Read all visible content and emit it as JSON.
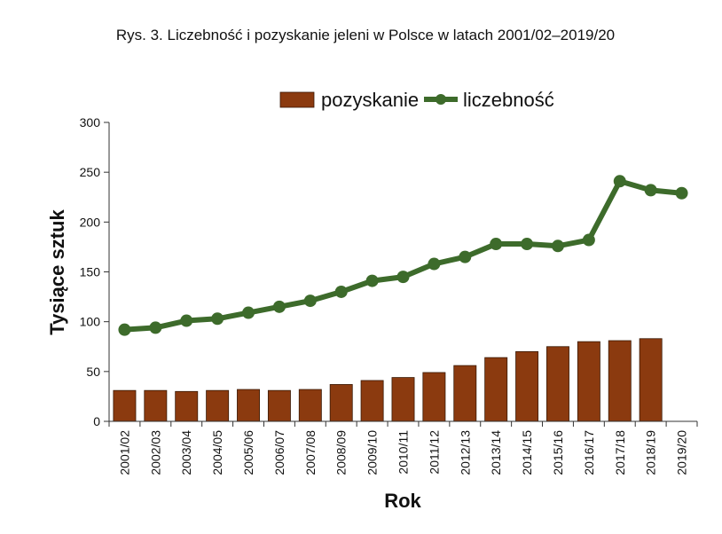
{
  "chart_data": {
    "type": "bar",
    "title": "Rys. 3. Liczebność i pozyskanie jeleni w Polsce w latach 2001/02–2019/20",
    "xlabel": "Rok",
    "ylabel": "Tysiące sztuk",
    "ylim": [
      0,
      300
    ],
    "yticks": [
      0,
      50,
      100,
      150,
      200,
      250,
      300
    ],
    "grid": false,
    "legend_position": "top",
    "categories": [
      "2001/02",
      "2002/03",
      "2003/04",
      "2004/05",
      "2005/06",
      "2006/07",
      "2007/08",
      "2008/09",
      "2009/10",
      "2010/11",
      "2011/12",
      "2012/13",
      "2013/14",
      "2014/15",
      "2015/16",
      "2016/17",
      "2017/18",
      "2018/19",
      "2019/20"
    ],
    "series": [
      {
        "name": "pozyskanie",
        "type": "bar",
        "color": "#8B3A0F",
        "values": [
          31,
          31,
          30,
          31,
          32,
          31,
          32,
          37,
          41,
          44,
          49,
          56,
          64,
          70,
          75,
          80,
          81,
          83,
          null
        ]
      },
      {
        "name": "liczebność",
        "type": "line",
        "color": "#3D6B2B",
        "values": [
          92,
          94,
          101,
          103,
          109,
          115,
          121,
          130,
          141,
          145,
          158,
          165,
          178,
          178,
          176,
          182,
          241,
          232,
          229
        ]
      }
    ]
  }
}
